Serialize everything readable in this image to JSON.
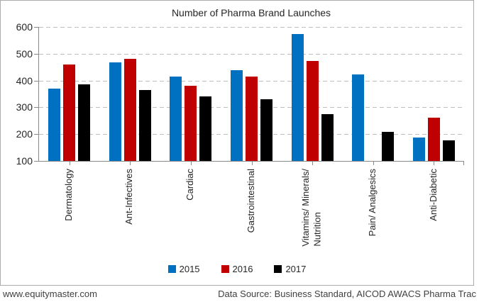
{
  "chart_data": {
    "type": "bar",
    "title": "Number of Pharma Brand Launches",
    "categories": [
      "Dermatology",
      "Ant-Infectives",
      "Cardiac",
      "Gastrointestinal",
      "Vitamins/ Minerals/\nNutrition",
      "Pain/ Analgesics",
      "Anti-Diabetic"
    ],
    "series": [
      {
        "name": "2015",
        "color": "#0070C0",
        "values": [
          371,
          468,
          415,
          438,
          573,
          422,
          187
        ]
      },
      {
        "name": "2016",
        "color": "#C00000",
        "values": [
          460,
          481,
          380,
          414,
          472,
          null,
          262
        ]
      },
      {
        "name": "2017",
        "color": "#000000",
        "values": [
          386,
          364,
          340,
          329,
          274,
          209,
          177
        ]
      }
    ],
    "ylim": [
      100,
      600
    ],
    "yticks": [
      600,
      500,
      400,
      300,
      200,
      100
    ],
    "grid": "horizontal-dashed",
    "legend_position": "bottom"
  },
  "footer": {
    "site": "www.equitymaster.com",
    "source": "Data Source: Business Standard, AICOD AWACS Pharma Trac"
  },
  "colors": {
    "grid": "#BFBFBF",
    "axis": "#898989",
    "border": "#ABABAB",
    "text": "#262626",
    "footer_text": "#404040"
  }
}
